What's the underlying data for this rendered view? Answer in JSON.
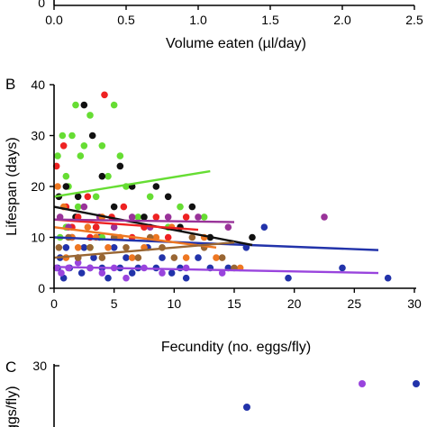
{
  "panels": {
    "a_axis": {
      "xlabel": "Volume eaten (µl/day)",
      "ticks": [
        "0.0",
        "0.5",
        "1.0",
        "1.5",
        "2.0",
        "2.5"
      ],
      "ytick": "0"
    },
    "b": {
      "label": "B"
    },
    "c": {
      "label": "C",
      "ytick": "30",
      "ylabel_fragment": "ggs/fly)"
    }
  },
  "chart_data": {
    "type": "scatter",
    "title": "",
    "xlabel": "Fecundity (no. eggs/fly)",
    "ylabel": "Lifespan (days)",
    "xlim": [
      0,
      30
    ],
    "ylim": [
      0,
      40
    ],
    "xticks": [
      "0",
      "5",
      "10",
      "15",
      "20",
      "25",
      "30"
    ],
    "yticks": [
      "0",
      "10",
      "20",
      "30",
      "40"
    ],
    "grid": false,
    "series": [
      {
        "color": "#2233aa",
        "points": [
          [
            0.3,
            4
          ],
          [
            0.5,
            6
          ],
          [
            0.8,
            2
          ],
          [
            1.0,
            8
          ],
          [
            1.3,
            4
          ],
          [
            1.5,
            10
          ],
          [
            2.0,
            6
          ],
          [
            2.3,
            3
          ],
          [
            2.5,
            8
          ],
          [
            3.0,
            4
          ],
          [
            3.3,
            6
          ],
          [
            3.8,
            10
          ],
          [
            4.0,
            4
          ],
          [
            4.5,
            2
          ],
          [
            5.0,
            8
          ],
          [
            5.5,
            4
          ],
          [
            6.0,
            6
          ],
          [
            6.5,
            3
          ],
          [
            7.0,
            4
          ],
          [
            7.8,
            8
          ],
          [
            8.5,
            4
          ],
          [
            9.0,
            6
          ],
          [
            9.8,
            3
          ],
          [
            10.5,
            4
          ],
          [
            11.0,
            2
          ],
          [
            12.0,
            6
          ],
          [
            13.0,
            4
          ],
          [
            14.5,
            4
          ],
          [
            16.0,
            8
          ],
          [
            17.5,
            12
          ],
          [
            19.5,
            2
          ],
          [
            24.0,
            4
          ],
          [
            27.8,
            2
          ]
        ],
        "fit": [
          [
            0,
            10
          ],
          [
            27,
            7.5
          ]
        ]
      },
      {
        "color": "#9944dd",
        "points": [
          [
            0.2,
            4
          ],
          [
            0.6,
            3
          ],
          [
            1.2,
            4
          ],
          [
            2.0,
            5
          ],
          [
            3.0,
            4
          ],
          [
            4.0,
            3
          ],
          [
            5.0,
            4
          ],
          [
            6.0,
            2
          ],
          [
            7.5,
            4
          ],
          [
            9.0,
            3
          ],
          [
            11.0,
            4
          ],
          [
            14.0,
            3
          ]
        ],
        "fit": [
          [
            0,
            4.2
          ],
          [
            27,
            3
          ]
        ]
      },
      {
        "color": "#66dd33",
        "points": [
          [
            0.3,
            26
          ],
          [
            0.7,
            30
          ],
          [
            1.0,
            22
          ],
          [
            1.2,
            20
          ],
          [
            1.5,
            30
          ],
          [
            1.8,
            36
          ],
          [
            2.2,
            26
          ],
          [
            2.5,
            28
          ],
          [
            3.0,
            34
          ],
          [
            3.5,
            18
          ],
          [
            4.0,
            28
          ],
          [
            4.5,
            22
          ],
          [
            5.0,
            36
          ],
          [
            5.5,
            26
          ],
          [
            6.0,
            20
          ],
          [
            7.0,
            14
          ],
          [
            8.0,
            18
          ],
          [
            9.5,
            12
          ],
          [
            10.5,
            16
          ],
          [
            12.5,
            14
          ],
          [
            1.0,
            12
          ],
          [
            2.0,
            16
          ],
          [
            0.5,
            10
          ],
          [
            3.0,
            8
          ],
          [
            4.0,
            10
          ]
        ],
        "fit": [
          [
            0,
            18
          ],
          [
            13,
            23
          ]
        ]
      },
      {
        "color": "#111111",
        "points": [
          [
            0.4,
            18
          ],
          [
            1.0,
            20
          ],
          [
            1.8,
            14
          ],
          [
            2.5,
            36
          ],
          [
            3.2,
            30
          ],
          [
            4.0,
            22
          ],
          [
            5.0,
            16
          ],
          [
            5.5,
            24
          ],
          [
            6.5,
            20
          ],
          [
            7.5,
            14
          ],
          [
            8.5,
            20
          ],
          [
            9.5,
            18
          ],
          [
            10.5,
            12
          ],
          [
            11.5,
            16
          ],
          [
            13.0,
            10
          ],
          [
            16.5,
            10
          ],
          [
            3.5,
            12
          ],
          [
            2.0,
            18
          ]
        ],
        "fit": [
          [
            0,
            16
          ],
          [
            16.5,
            8.5
          ]
        ]
      },
      {
        "color": "#ee2222",
        "points": [
          [
            0.2,
            24
          ],
          [
            0.8,
            28
          ],
          [
            1.5,
            12
          ],
          [
            2.0,
            14
          ],
          [
            2.8,
            18
          ],
          [
            3.5,
            12
          ],
          [
            4.2,
            38
          ],
          [
            4.8,
            14
          ],
          [
            5.8,
            16
          ],
          [
            6.5,
            10
          ],
          [
            7.5,
            12
          ],
          [
            8.5,
            14
          ],
          [
            9.5,
            10
          ],
          [
            11.0,
            14
          ],
          [
            1.0,
            16
          ],
          [
            3.0,
            10
          ]
        ],
        "fit": [
          [
            0,
            13.5
          ],
          [
            12,
            11.5
          ]
        ]
      },
      {
        "color": "#993399",
        "points": [
          [
            0.5,
            14
          ],
          [
            1.2,
            12
          ],
          [
            2.5,
            16
          ],
          [
            3.8,
            14
          ],
          [
            5.0,
            12
          ],
          [
            6.5,
            14
          ],
          [
            8.0,
            12
          ],
          [
            9.5,
            14
          ],
          [
            12.0,
            14
          ],
          [
            14.5,
            12
          ],
          [
            22.5,
            14
          ]
        ],
        "fit": [
          [
            0,
            13.5
          ],
          [
            15,
            13
          ]
        ]
      },
      {
        "color": "#ee7722",
        "points": [
          [
            0.3,
            20
          ],
          [
            0.8,
            16
          ],
          [
            1.5,
            10
          ],
          [
            2.0,
            8
          ],
          [
            2.8,
            12
          ],
          [
            3.5,
            10
          ],
          [
            4.5,
            8
          ],
          [
            5.5,
            10
          ],
          [
            6.5,
            6
          ],
          [
            7.5,
            8
          ],
          [
            8.5,
            10
          ],
          [
            9.8,
            12
          ],
          [
            11.0,
            6
          ],
          [
            12.5,
            10
          ],
          [
            13.5,
            6
          ],
          [
            15.5,
            4
          ],
          [
            1.0,
            6
          ],
          [
            4.0,
            14
          ]
        ],
        "fit": [
          [
            0,
            12
          ],
          [
            13.5,
            8
          ]
        ]
      },
      {
        "color": "#996633",
        "points": [
          [
            0.4,
            8
          ],
          [
            1.2,
            10
          ],
          [
            2.0,
            6
          ],
          [
            3.0,
            8
          ],
          [
            4.0,
            6
          ],
          [
            5.0,
            10
          ],
          [
            6.0,
            8
          ],
          [
            7.0,
            6
          ],
          [
            8.0,
            10
          ],
          [
            9.0,
            8
          ],
          [
            10.0,
            6
          ],
          [
            11.5,
            10
          ],
          [
            12.5,
            8
          ],
          [
            14.0,
            6
          ],
          [
            15.0,
            4
          ]
        ],
        "fit": [
          [
            0,
            6
          ],
          [
            15,
            9
          ]
        ]
      }
    ]
  }
}
